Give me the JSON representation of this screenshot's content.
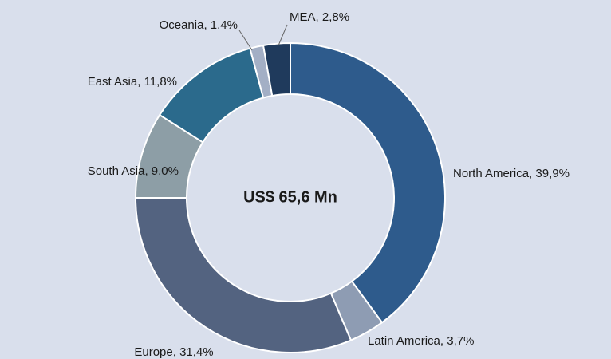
{
  "chart_data": {
    "type": "pie",
    "categories": [
      "North America",
      "Latin America",
      "Europe",
      "South Asia",
      "East Asia",
      "Oceania",
      "MEA"
    ],
    "values": [
      39.9,
      3.7,
      31.4,
      9.0,
      11.8,
      1.4,
      2.8
    ],
    "value_labels": [
      "39,9%",
      "3,7%",
      "31,4%",
      "9,0%",
      "11,8%",
      "1,4%",
      "2,8%"
    ],
    "colors": [
      "#2e5b8c",
      "#8e9cb3",
      "#536380",
      "#8d9ea6",
      "#2b6a8c",
      "#a3afc5",
      "#1f3a5c"
    ],
    "center_label": "US$ 65,6 Mn"
  }
}
